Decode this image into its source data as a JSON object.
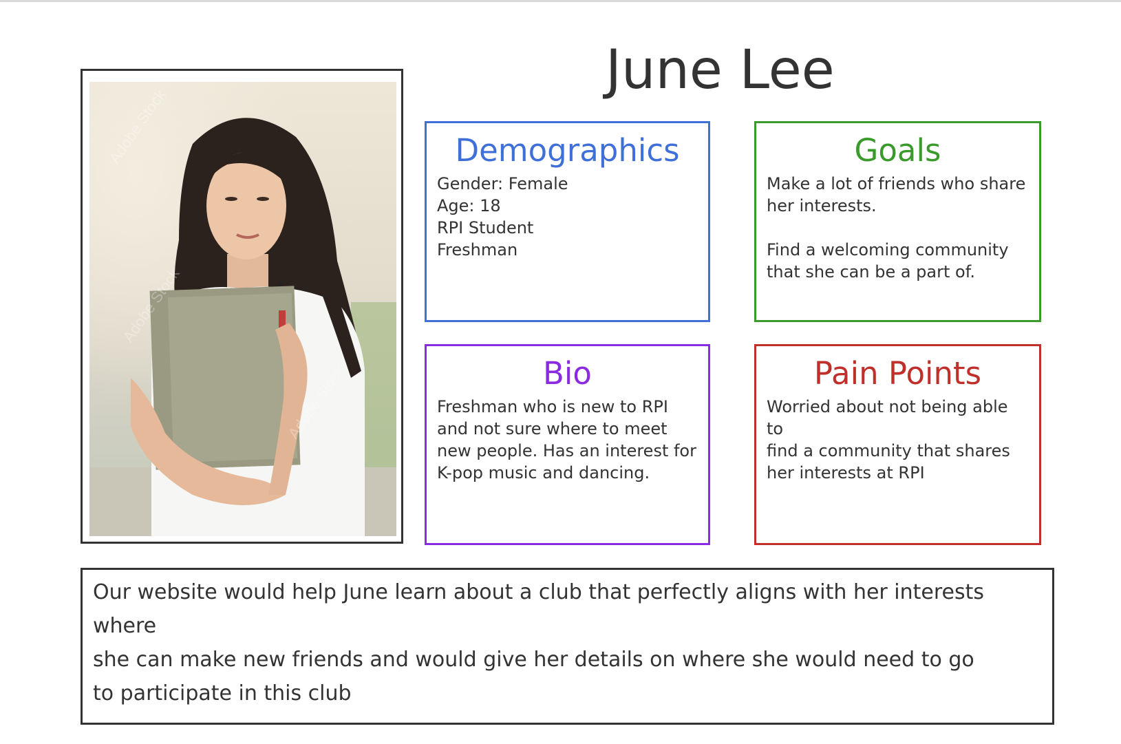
{
  "persona_name": "June Lee",
  "colors": {
    "demographics": "#3f6fd8",
    "goals": "#3a9a2b",
    "bio": "#8a2be2",
    "pain_points": "#c0302b",
    "ink": "#333333"
  },
  "photo_watermark": "Adobe Stock",
  "cards": {
    "demographics": {
      "title": "Demographics",
      "body": "Gender: Female\nAge: 18\nRPI Student\nFreshman"
    },
    "goals": {
      "title": "Goals",
      "body": "Make a lot of friends who share\nher interests.\n\nFind a welcoming community\nthat she can be a part of."
    },
    "bio": {
      "title": "Bio",
      "body": "Freshman who is new to RPI\nand not sure where to meet\nnew people. Has an interest for\nK-pop music and dancing."
    },
    "pain_points": {
      "title": "Pain Points",
      "body": "Worried about not being able to\nfind a community that shares\nher interests at RPI"
    }
  },
  "summary": "Our website would help June learn about a club that perfectly aligns with her interests where\nshe can make new friends and would give her details on where she would need to go\nto participate in this club"
}
